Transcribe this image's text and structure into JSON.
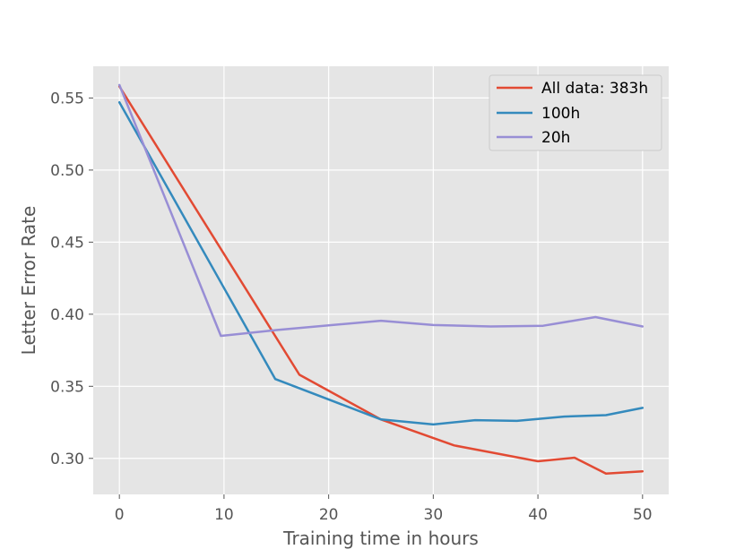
{
  "chart_data": {
    "type": "line",
    "title": "",
    "xlabel": "Training time in hours",
    "ylabel": "Letter Error Rate",
    "xlim": [
      -2.5,
      52.5
    ],
    "ylim": [
      0.275,
      0.572
    ],
    "xticks": [
      "0",
      "10",
      "20",
      "30",
      "40",
      "50"
    ],
    "yticks": [
      "0.30",
      "0.35",
      "0.40",
      "0.45",
      "0.50",
      "0.55"
    ],
    "grid": true,
    "legend_position": "top-right",
    "series": [
      {
        "name": "All data: 383h",
        "color": "#E24A33",
        "x": [
          0,
          17.2,
          25,
          32,
          40,
          43.5,
          46.5,
          50
        ],
        "y": [
          0.558,
          0.358,
          0.327,
          0.309,
          0.298,
          0.3005,
          0.2895,
          0.291
        ]
      },
      {
        "name": "100h",
        "color": "#348ABD",
        "x": [
          0,
          14.9,
          25,
          30,
          34,
          38,
          42.5,
          46.5,
          50
        ],
        "y": [
          0.547,
          0.355,
          0.327,
          0.3235,
          0.3265,
          0.326,
          0.329,
          0.33,
          0.335
        ]
      },
      {
        "name": "20h",
        "color": "#988ED5",
        "x": [
          0,
          9.7,
          15,
          25,
          30,
          35.5,
          40.5,
          45.5,
          50
        ],
        "y": [
          0.559,
          0.385,
          0.389,
          0.3955,
          0.3925,
          0.3915,
          0.392,
          0.398,
          0.3915
        ]
      }
    ]
  }
}
